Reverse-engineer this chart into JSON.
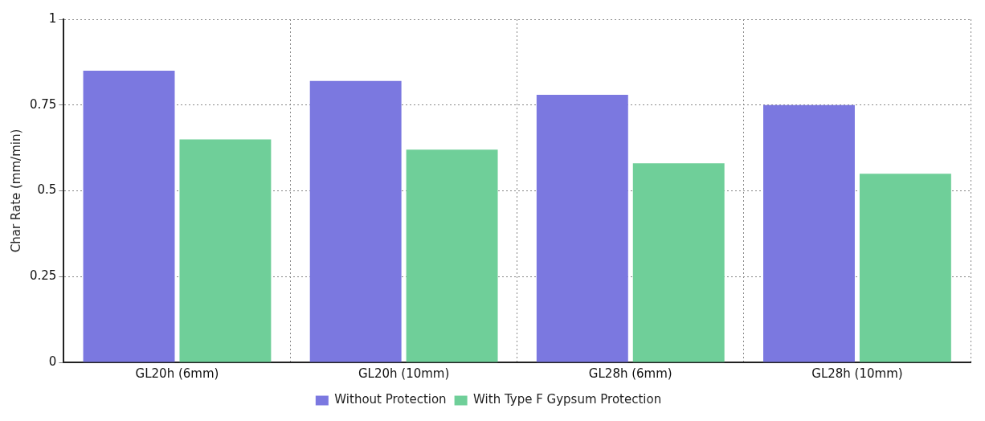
{
  "chart_data": {
    "type": "bar",
    "ylabel": "Char Rate (mm/min)",
    "categories": [
      "GL20h (6mm)",
      "GL20h (10mm)",
      "GL28h (6mm)",
      "GL28h (10mm)"
    ],
    "series": [
      {
        "name": "Without Protection",
        "color": "#7b78e0",
        "values": [
          0.85,
          0.82,
          0.78,
          0.75
        ]
      },
      {
        "name": "With Type F Gypsum Protection",
        "color": "#6fcf99",
        "values": [
          0.65,
          0.62,
          0.58,
          0.55
        ]
      }
    ],
    "ylim": [
      0,
      1
    ],
    "yticks": [
      0,
      0.25,
      0.5,
      0.75,
      1
    ],
    "grid": true,
    "legend": "bottom"
  }
}
